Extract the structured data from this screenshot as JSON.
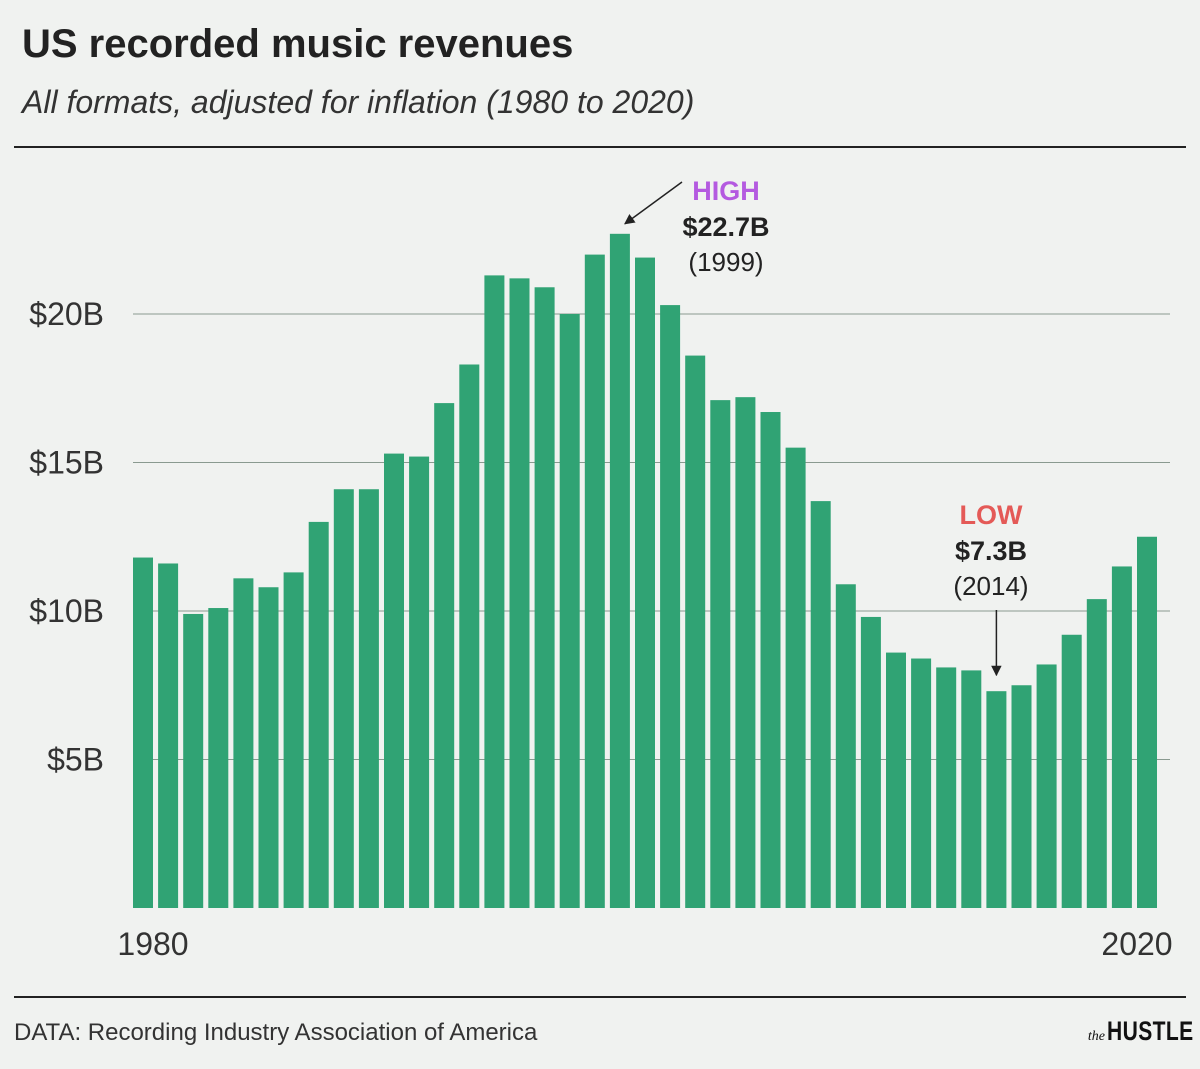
{
  "title": "US recorded music revenues",
  "subtitle": "All formats, adjusted for inflation (1980 to 2020)",
  "footer": {
    "source": "DATA: Recording Industry Association of America",
    "brand_small": "the",
    "brand_big": "HUSTLE"
  },
  "colors": {
    "bar": "#30a374",
    "high_label": "#b45ae0",
    "low_label": "#e45a57",
    "text": "#222222",
    "grid": "#8a9a90",
    "background": "#f0f2f0"
  },
  "chart_data": {
    "type": "bar",
    "title": "US recorded music revenues",
    "subtitle": "All formats, adjusted for inflation (1980 to 2020)",
    "x": [
      1980,
      1981,
      1982,
      1983,
      1984,
      1985,
      1986,
      1987,
      1988,
      1989,
      1990,
      1991,
      1992,
      1993,
      1994,
      1995,
      1996,
      1997,
      1998,
      1999,
      2000,
      2001,
      2002,
      2003,
      2004,
      2005,
      2006,
      2007,
      2008,
      2009,
      2010,
      2011,
      2012,
      2013,
      2014,
      2015,
      2016,
      2017,
      2018,
      2019,
      2020
    ],
    "values": [
      11.8,
      11.6,
      9.9,
      10.1,
      11.1,
      10.8,
      11.3,
      13.0,
      14.1,
      14.1,
      15.3,
      15.2,
      17.0,
      18.3,
      21.3,
      21.2,
      20.9,
      20.0,
      22.0,
      22.7,
      21.9,
      20.3,
      18.6,
      17.1,
      17.2,
      16.7,
      15.5,
      13.7,
      10.9,
      9.8,
      8.6,
      8.4,
      8.1,
      8.0,
      7.3,
      7.5,
      8.2,
      9.2,
      10.4,
      11.5,
      12.5
    ],
    "x_tick_labels": [
      "1980",
      "2020"
    ],
    "y_ticks": [
      5,
      10,
      15,
      20
    ],
    "y_tick_labels": [
      "$5B",
      "$10B",
      "$15B",
      "$20B"
    ],
    "ylim": [
      0,
      24
    ],
    "grid": true,
    "annotations": {
      "high": {
        "label": "HIGH",
        "value": "$22.7B",
        "year": "(1999)",
        "index": 19
      },
      "low": {
        "label": "LOW",
        "value": "$7.3B",
        "year": "(2014)",
        "index": 34
      }
    }
  }
}
